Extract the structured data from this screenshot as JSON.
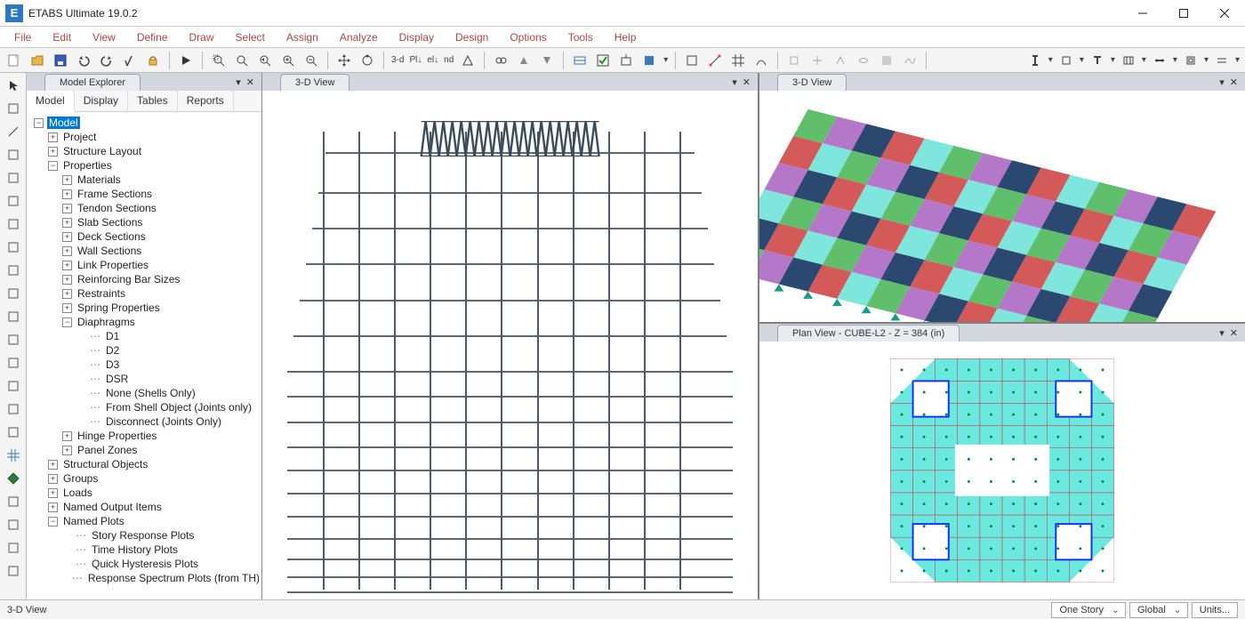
{
  "app": {
    "icon_letter": "E",
    "title": "ETABS Ultimate 19.0.2"
  },
  "menu": [
    "File",
    "Edit",
    "View",
    "Define",
    "Draw",
    "Select",
    "Assign",
    "Analyze",
    "Display",
    "Design",
    "Options",
    "Tools",
    "Help"
  ],
  "toolbar_texts": {
    "three_d": "3-d",
    "pla": "Pl↓",
    "ele": "el↓",
    "nd": "nd"
  },
  "explorer": {
    "title": "Model Explorer",
    "subtabs": [
      "Model",
      "Display",
      "Tables",
      "Reports"
    ],
    "active_subtab": 0,
    "tree": [
      {
        "d": 0,
        "t": "minus",
        "label": "Model",
        "sel": true
      },
      {
        "d": 1,
        "t": "plus",
        "label": "Project"
      },
      {
        "d": 1,
        "t": "plus",
        "label": "Structure Layout"
      },
      {
        "d": 1,
        "t": "minus",
        "label": "Properties"
      },
      {
        "d": 2,
        "t": "plus",
        "label": "Materials"
      },
      {
        "d": 2,
        "t": "plus",
        "label": "Frame Sections"
      },
      {
        "d": 2,
        "t": "plus",
        "label": "Tendon Sections"
      },
      {
        "d": 2,
        "t": "plus",
        "label": "Slab Sections"
      },
      {
        "d": 2,
        "t": "plus",
        "label": "Deck Sections"
      },
      {
        "d": 2,
        "t": "plus",
        "label": "Wall Sections"
      },
      {
        "d": 2,
        "t": "plus",
        "label": "Link Properties"
      },
      {
        "d": 2,
        "t": "plus",
        "label": "Reinforcing Bar Sizes"
      },
      {
        "d": 2,
        "t": "plus",
        "label": "Restraints"
      },
      {
        "d": 2,
        "t": "plus",
        "label": "Spring Properties"
      },
      {
        "d": 2,
        "t": "minus",
        "label": "Diaphragms"
      },
      {
        "d": 3,
        "t": "leaf",
        "label": "D1"
      },
      {
        "d": 3,
        "t": "leaf",
        "label": "D2"
      },
      {
        "d": 3,
        "t": "leaf",
        "label": "D3"
      },
      {
        "d": 3,
        "t": "leaf",
        "label": "DSR"
      },
      {
        "d": 3,
        "t": "leaf",
        "label": "None (Shells Only)"
      },
      {
        "d": 3,
        "t": "leaf",
        "label": "From Shell Object (Joints only)"
      },
      {
        "d": 3,
        "t": "leaf",
        "label": "Disconnect (Joints Only)"
      },
      {
        "d": 2,
        "t": "plus",
        "label": "Hinge Properties"
      },
      {
        "d": 2,
        "t": "plus",
        "label": "Panel Zones"
      },
      {
        "d": 1,
        "t": "plus",
        "label": "Structural Objects"
      },
      {
        "d": 1,
        "t": "plus",
        "label": "Groups"
      },
      {
        "d": 1,
        "t": "plus",
        "label": "Loads"
      },
      {
        "d": 1,
        "t": "plus",
        "label": "Named Output Items"
      },
      {
        "d": 1,
        "t": "minus",
        "label": "Named Plots"
      },
      {
        "d": 2,
        "t": "leaf",
        "label": "Story Response Plots"
      },
      {
        "d": 2,
        "t": "leaf",
        "label": "Time History Plots"
      },
      {
        "d": 2,
        "t": "leaf",
        "label": "Quick Hysteresis Plots"
      },
      {
        "d": 2,
        "t": "leaf",
        "label": "Response Spectrum Plots (from TH)"
      }
    ]
  },
  "views": {
    "left": "3-D View",
    "top_right": "3-D View",
    "bottom_right": "Plan View - CUBE-L2 - Z = 384 (in)"
  },
  "building": {
    "floor_fracs": [
      0.12,
      0.2,
      0.27,
      0.34,
      0.41,
      0.48,
      0.55,
      0.6,
      0.65,
      0.7,
      0.745,
      0.79,
      0.835,
      0.88,
      0.92,
      0.955,
      0.985
    ],
    "col_fracs": [
      0.08,
      0.16,
      0.24,
      0.32,
      0.4,
      0.48,
      0.56,
      0.64,
      0.72,
      0.8,
      0.88
    ],
    "edge_color": "#5a6872",
    "col_color": "#4a5a6a"
  },
  "mesh": {
    "rows": 6,
    "cols": 14,
    "colors": [
      "#5fbf6a",
      "#b577c9",
      "#2a4870",
      "#d45a5a",
      "#7fe6dd"
    ],
    "stroke": "#ffffff"
  },
  "plan": {
    "slab_color": "#6be8e0",
    "slab_stroke": "#d03030",
    "core_stroke": "#1030f0",
    "cores": [
      [
        0.1,
        0.1
      ],
      [
        0.74,
        0.1
      ],
      [
        0.1,
        0.74
      ],
      [
        0.74,
        0.74
      ]
    ],
    "core_w": 0.16,
    "core_h": 0.16
  },
  "statusbar": {
    "left": "3-D View",
    "story": "One Story",
    "coord": "Global",
    "units": "Units..."
  },
  "colors": {
    "menu_text": "#a84848",
    "titlebar_bg": "#ffffff",
    "selection": "#0078d7",
    "app_icon_bg": "#2b78c4"
  }
}
